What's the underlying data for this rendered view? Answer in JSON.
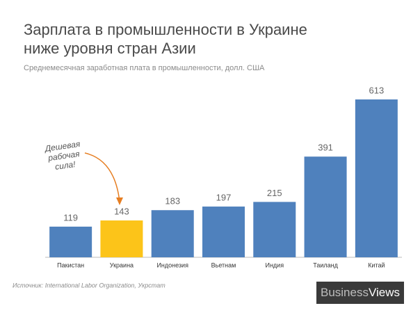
{
  "chart_data": {
    "type": "bar",
    "title": [
      "Зарплата в промышленности в Украине",
      "ниже уровня стран Азии"
    ],
    "subtitle": "Среднемесячная заработная плата в промышленности, долл. США",
    "categories": [
      "Пакистан",
      "Украина",
      "Индонезия",
      "Вьетнам",
      "Индия",
      "Таиланд",
      "Китай"
    ],
    "values": [
      119,
      143,
      183,
      197,
      215,
      391,
      613
    ],
    "colors": [
      "#4f81bd",
      "#fcc419",
      "#4f81bd",
      "#4f81bd",
      "#4f81bd",
      "#4f81bd",
      "#4f81bd"
    ],
    "annotation": [
      "Дешевая",
      "рабочая",
      "сила!"
    ],
    "source": "Источник: International Labor Organization, Укрстат",
    "logo": {
      "first": "Business",
      "second": "Views"
    }
  }
}
